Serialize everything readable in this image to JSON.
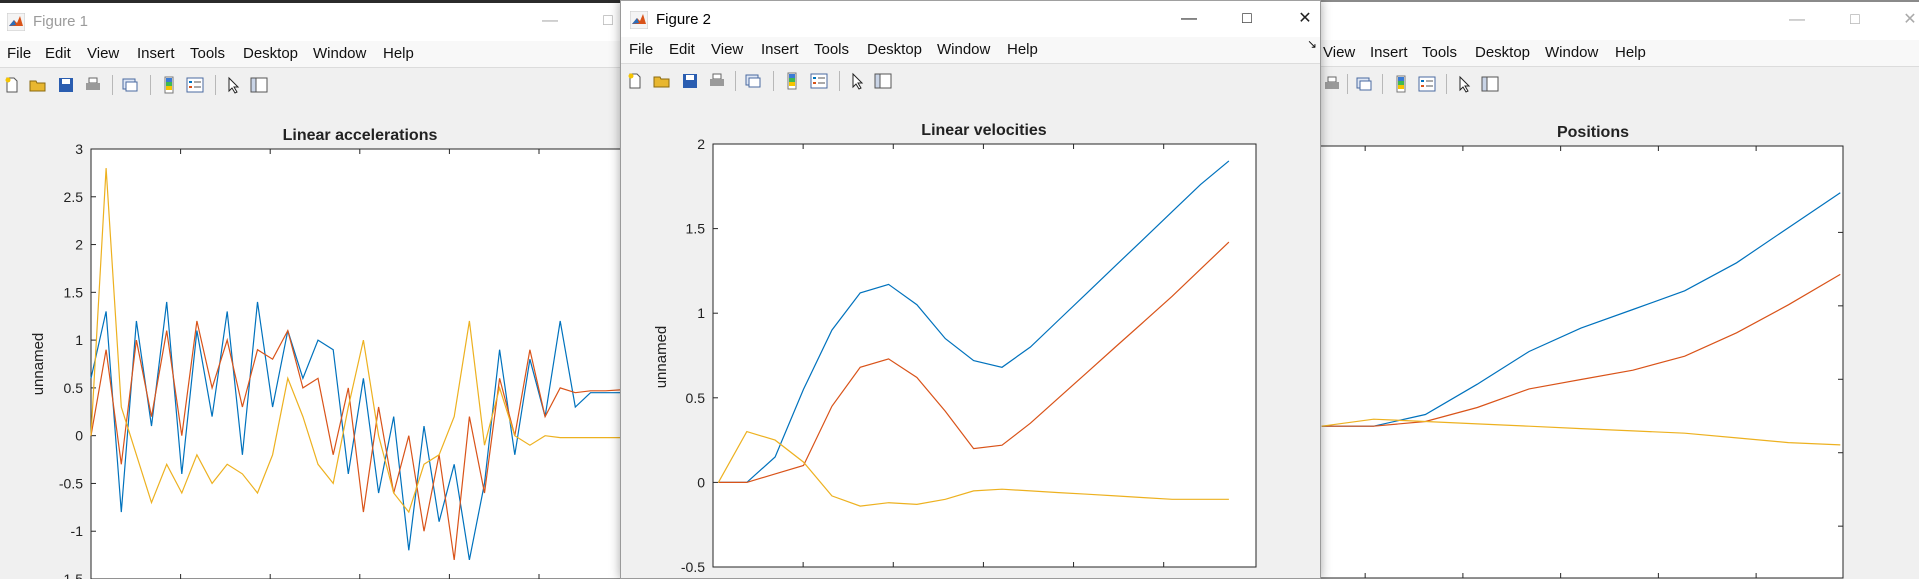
{
  "figure1": {
    "title": "Figure 1",
    "menu": [
      "File",
      "Edit",
      "View",
      "Insert",
      "Tools",
      "Desktop",
      "Window",
      "Help"
    ],
    "axes": {
      "title": "Linear accelerations",
      "ylabel": "unnamed",
      "yticks": [
        "3",
        "2.5",
        "2",
        "1.5",
        "1",
        "0.5",
        "0",
        "-0.5",
        "-1",
        "-1.5"
      ]
    }
  },
  "figure2": {
    "title": "Figure 2",
    "menu": [
      "File",
      "Edit",
      "View",
      "Insert",
      "Tools",
      "Desktop",
      "Window",
      "Help"
    ],
    "axes": {
      "title": "Linear velocities",
      "ylabel": "unnamed",
      "yticks": [
        "2",
        "1.5",
        "1",
        "0.5",
        "0",
        "-0.5"
      ]
    }
  },
  "figure3": {
    "menu": [
      "View",
      "Insert",
      "Tools",
      "Desktop",
      "Window",
      "Help"
    ],
    "axes": {
      "title": "Positions"
    }
  },
  "colors": {
    "blue": "#0072BD",
    "orange": "#D95319",
    "yellow": "#EDB120"
  },
  "chart_data": [
    {
      "type": "line",
      "title": "Linear accelerations",
      "ylabel": "unnamed",
      "ylim": [
        -1.5,
        3
      ],
      "series": [
        {
          "values": [
            0.6,
            1.3,
            -0.8,
            1.2,
            0.1,
            1.4,
            -0.4,
            1.1,
            0.2,
            1.3,
            -0.2,
            1.4,
            0.3,
            1.1,
            0.6,
            1.0,
            0.9,
            -0.4,
            0.6,
            -0.6,
            0.2,
            -1.2,
            0.1,
            -0.9,
            -0.3,
            -1.3,
            -0.5,
            0.9,
            -0.2,
            0.8,
            0.2,
            1.2,
            0.3,
            0.45,
            0.45,
            0.45,
            0.45,
            0.45
          ]
        },
        {
          "values": [
            0.0,
            0.9,
            -0.3,
            1.0,
            0.2,
            1.1,
            0.0,
            1.2,
            0.5,
            1.0,
            0.3,
            0.9,
            0.8,
            1.1,
            0.5,
            0.6,
            -0.2,
            0.5,
            -0.8,
            0.3,
            -0.6,
            0.0,
            -1.0,
            -0.2,
            -1.3,
            0.2,
            -0.6,
            0.6,
            0.0,
            0.9,
            0.2,
            0.5,
            0.45,
            0.47,
            0.47,
            0.48,
            0.48,
            0.48
          ]
        },
        {
          "values": [
            0.0,
            2.8,
            0.3,
            -0.2,
            -0.7,
            -0.3,
            -0.6,
            -0.2,
            -0.5,
            -0.3,
            -0.4,
            -0.6,
            -0.2,
            0.6,
            0.2,
            -0.3,
            -0.5,
            0.3,
            1.0,
            0.0,
            -0.6,
            -0.8,
            -0.3,
            -0.2,
            0.2,
            1.2,
            -0.1,
            0.5,
            0.0,
            -0.1,
            0.0,
            -0.02,
            -0.02,
            -0.02,
            -0.02,
            -0.02,
            -0.02,
            -0.02
          ]
        }
      ]
    },
    {
      "type": "line",
      "title": "Linear velocities",
      "ylabel": "unnamed",
      "ylim": [
        -0.5,
        2
      ],
      "series": [
        {
          "values": [
            0.0,
            0.0,
            0.15,
            0.55,
            0.9,
            1.12,
            1.17,
            1.05,
            0.85,
            0.72,
            0.68,
            0.8,
            0.96,
            1.12,
            1.28,
            1.44,
            1.6,
            1.76,
            1.9
          ]
        },
        {
          "values": [
            0.0,
            0.0,
            0.05,
            0.1,
            0.45,
            0.68,
            0.73,
            0.62,
            0.42,
            0.2,
            0.22,
            0.35,
            0.5,
            0.65,
            0.8,
            0.95,
            1.1,
            1.26,
            1.42
          ]
        },
        {
          "values": [
            0.0,
            0.3,
            0.25,
            0.12,
            -0.08,
            -0.14,
            -0.12,
            -0.13,
            -0.1,
            -0.05,
            -0.04,
            -0.05,
            -0.06,
            -0.07,
            -0.08,
            -0.09,
            -0.1,
            -0.1,
            -0.1
          ]
        }
      ]
    },
    {
      "type": "line",
      "title": "Positions",
      "series": [
        {
          "values": [
            0.0,
            0.0,
            0.05,
            0.18,
            0.32,
            0.42,
            0.5,
            0.58,
            0.7,
            0.85,
            1.0
          ]
        },
        {
          "values": [
            0.0,
            0.0,
            0.02,
            0.08,
            0.16,
            0.2,
            0.24,
            0.3,
            0.4,
            0.52,
            0.65
          ]
        },
        {
          "values": [
            0.0,
            0.03,
            0.02,
            0.01,
            0.0,
            -0.01,
            -0.02,
            -0.03,
            -0.05,
            -0.07,
            -0.08
          ]
        }
      ]
    }
  ]
}
